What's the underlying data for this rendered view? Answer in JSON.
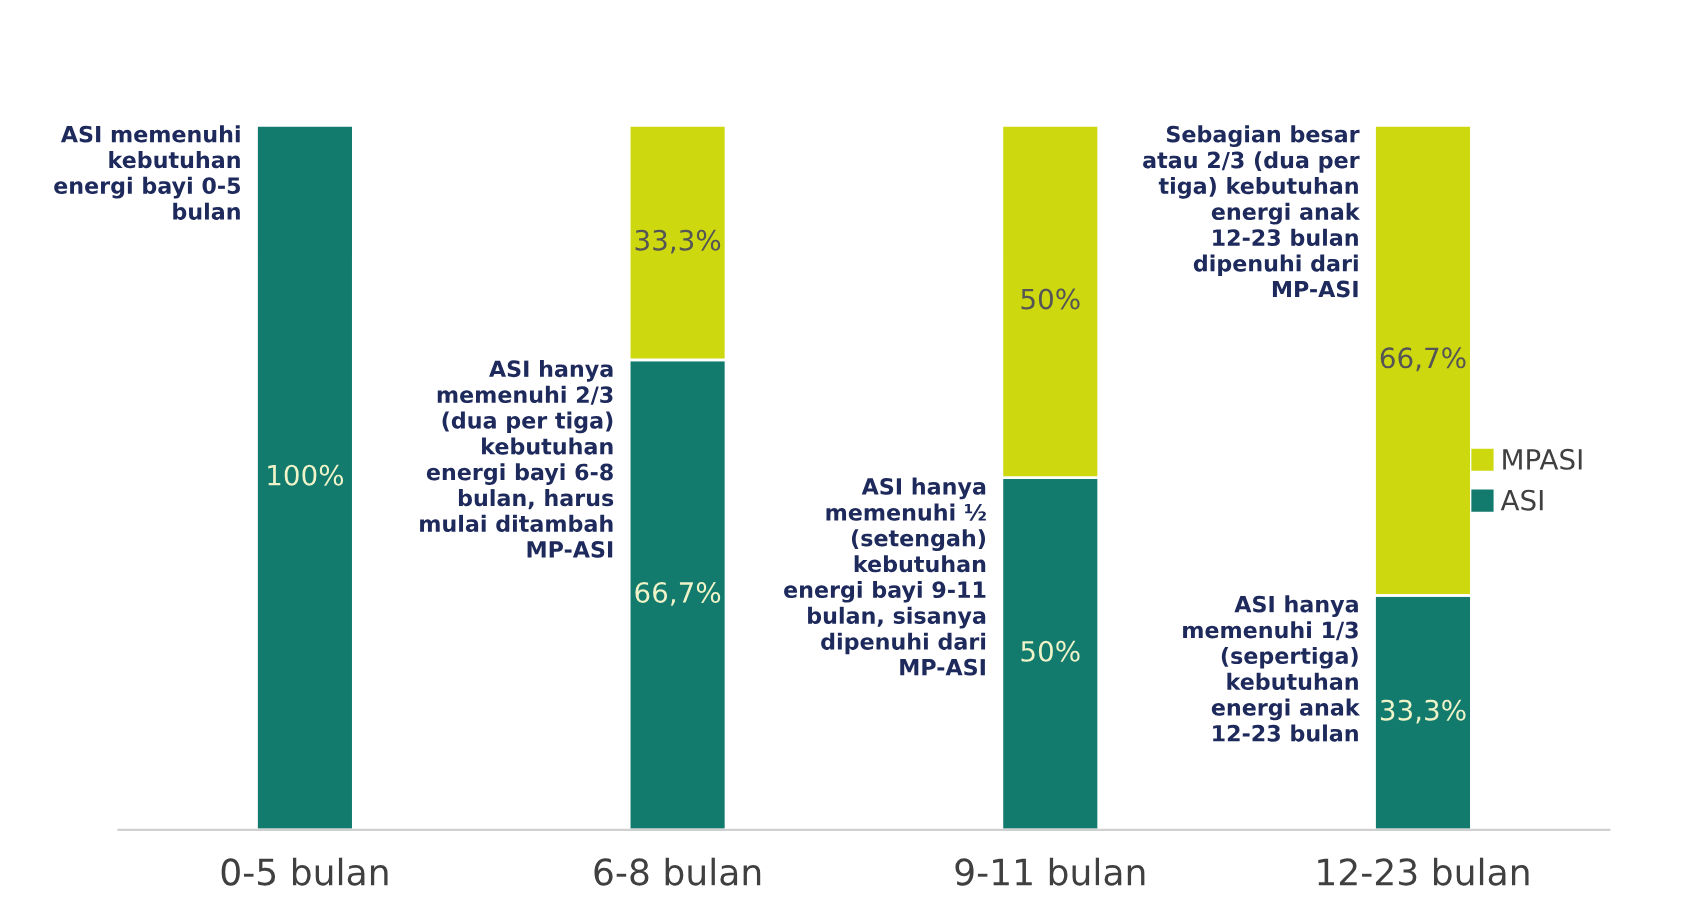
{
  "chart_data": {
    "type": "bar",
    "stacked": true,
    "categories": [
      "0-5 bulan",
      "6-8 bulan",
      "9-11 bulan",
      "12-23 bulan"
    ],
    "series": [
      {
        "name": "ASI",
        "color": "#137a6e",
        "values": [
          100,
          66.7,
          50,
          33.3
        ],
        "value_labels": [
          "100%",
          "66,7%",
          "50%",
          "33,3%"
        ]
      },
      {
        "name": "MPASI",
        "color": "#cdd80f",
        "values": [
          null,
          33.3,
          50,
          66.7
        ],
        "value_labels": [
          null,
          "33,3%",
          "50%",
          "66,7%"
        ]
      }
    ],
    "legend": "right",
    "annotations": [
      "ASI memenuhi kebutuhan energi bayi 0-5 bulan",
      "ASI hanya memenuhi 2/3 (dua per tiga) kebutuhan energi bayi 6-8 bulan, harus mulai ditambah MP-ASI",
      "ASI hanya memenuhi ½ (setengah) kebutuhan energi bayi 9-11 bulan, sisanya dipenuhi dari MP-ASI",
      "Sebagian besar atau 2/3 (dua per tiga) kebutuhan energi anak 12-23 bulan dipenuhi dari MP-ASI",
      "ASI hanya memenuhi 1/3 (sepertiga) kebutuhan energi anak 12-23 bulan"
    ]
  }
}
